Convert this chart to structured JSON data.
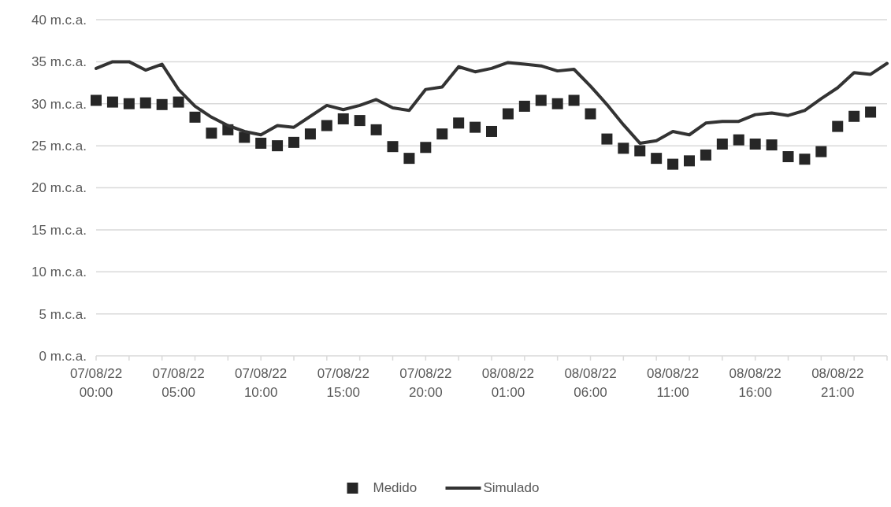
{
  "chart_data": {
    "type": "line",
    "categories": [
      "07/08/22 00:00",
      null,
      null,
      null,
      null,
      "07/08/22 05:00",
      null,
      null,
      null,
      null,
      "07/08/22 10:00",
      null,
      null,
      null,
      null,
      "07/08/22 15:00",
      null,
      null,
      null,
      null,
      "07/08/22 20:00",
      null,
      null,
      null,
      null,
      "08/08/22 01:00",
      null,
      null,
      null,
      null,
      "08/08/22 06:00",
      null,
      null,
      null,
      null,
      "08/08/22 11:00",
      null,
      null,
      null,
      null,
      "08/08/22 16:00",
      null,
      null,
      null,
      null,
      "08/08/22 21:00",
      null,
      null,
      null
    ],
    "series": [
      {
        "name": "Medido",
        "type": "scatter",
        "marker": "square",
        "color": "#262626",
        "values": [
          30.4,
          30.2,
          30.0,
          30.1,
          29.9,
          30.2,
          28.4,
          26.5,
          26.9,
          26.0,
          25.3,
          25.0,
          25.4,
          26.4,
          27.4,
          28.2,
          28.0,
          26.9,
          24.9,
          23.5,
          24.8,
          26.4,
          27.7,
          27.2,
          26.7,
          28.8,
          29.7,
          30.4,
          30.0,
          30.4,
          28.8,
          25.8,
          24.7,
          24.4,
          23.5,
          22.8,
          23.2,
          23.9,
          25.2,
          25.7,
          25.2,
          25.1,
          23.7,
          23.4,
          24.3,
          27.3,
          28.5,
          29.0,
          null
        ]
      },
      {
        "name": "Simulado",
        "marker": "none",
        "line_style": "solid",
        "color": "#333333",
        "values": [
          34.2,
          35.0,
          35.0,
          34.0,
          34.7,
          31.7,
          29.7,
          28.4,
          27.4,
          26.7,
          26.3,
          27.4,
          27.2,
          28.5,
          29.8,
          29.3,
          29.8,
          30.5,
          29.5,
          29.2,
          31.7,
          32.0,
          34.4,
          33.8,
          34.2,
          34.9,
          34.7,
          34.5,
          33.9,
          34.1,
          32.1,
          29.9,
          27.5,
          25.3,
          25.6,
          26.7,
          26.3,
          27.7,
          27.9,
          27.9,
          28.7,
          28.9,
          28.6,
          29.2,
          30.6,
          31.9,
          33.7,
          33.5,
          34.8
        ]
      }
    ],
    "ylim": [
      0,
      40
    ],
    "yticks": [
      {
        "value": 0,
        "label": "0 m.c.a."
      },
      {
        "value": 5,
        "label": "5 m.c.a."
      },
      {
        "value": 10,
        "label": "10 m.c.a."
      },
      {
        "value": 15,
        "label": "15 m.c.a."
      },
      {
        "value": 20,
        "label": "20 m.c.a."
      },
      {
        "value": 25,
        "label": "25 m.c.a."
      },
      {
        "value": 30,
        "label": "30 m.c.a."
      },
      {
        "value": 35,
        "label": "35 m.c.a."
      },
      {
        "value": 40,
        "label": "40 m.c.a."
      }
    ],
    "grid": "y",
    "legend": "bottom"
  }
}
